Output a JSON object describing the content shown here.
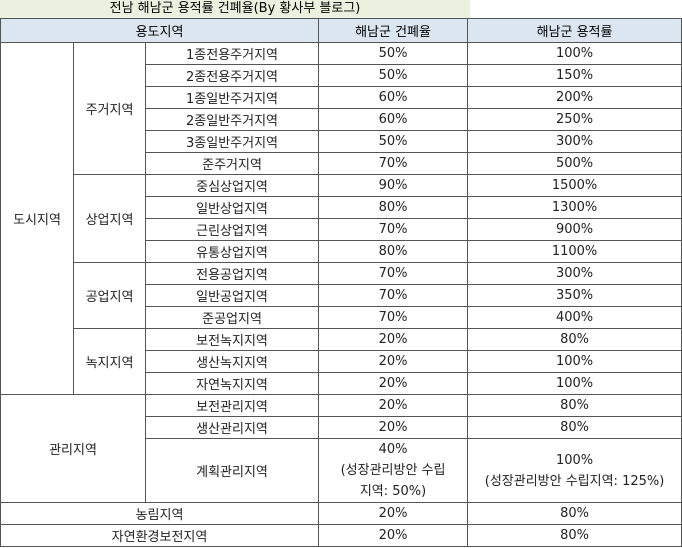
{
  "title": "전남 해남군 용적률 건폐율(By 황사부 블로그)",
  "header": [
    "용도지역",
    "해남군 건폐율",
    "해남군 용적률"
  ],
  "groups": [
    {
      "label": "도시지역",
      "subgroups": [
        {
          "label": "주거지역",
          "rows": [
            {
              "name": "1종전용주거지역",
              "coverage": "50%",
              "far": "100%"
            },
            {
              "name": "2종전용주거지역",
              "coverage": "50%",
              "far": "150%"
            },
            {
              "name": "1종일반주거지역",
              "coverage": "60%",
              "far": "200%"
            },
            {
              "name": "2종일반주거지역",
              "coverage": "60%",
              "far": "250%"
            },
            {
              "name": "3종일반주거지역",
              "coverage": "50%",
              "far": "300%"
            },
            {
              "name": "준주거지역",
              "coverage": "70%",
              "far": "500%"
            }
          ]
        },
        {
          "label": "상업지역",
          "rows": [
            {
              "name": "중심상업지역",
              "coverage": "90%",
              "far": "1500%"
            },
            {
              "name": "일반상업지역",
              "coverage": "80%",
              "far": "1300%"
            },
            {
              "name": "근린상업지역",
              "coverage": "70%",
              "far": "900%"
            },
            {
              "name": "유통상업지역",
              "coverage": "80%",
              "far": "1100%"
            }
          ]
        },
        {
          "label": "공업지역",
          "rows": [
            {
              "name": "전용공업지역",
              "coverage": "70%",
              "far": "300%"
            },
            {
              "name": "일반공업지역",
              "coverage": "70%",
              "far": "350%"
            },
            {
              "name": "준공업지역",
              "coverage": "70%",
              "far": "400%"
            }
          ]
        },
        {
          "label": "녹지지역",
          "rows": [
            {
              "name": "보전녹지지역",
              "coverage": "20%",
              "far": "80%"
            },
            {
              "name": "생산녹지지역",
              "coverage": "20%",
              "far": "100%"
            },
            {
              "name": "자연녹지지역",
              "coverage": "20%",
              "far": "100%"
            }
          ]
        }
      ]
    },
    {
      "label": "관리지역",
      "rows": [
        {
          "name": "보전관리지역",
          "coverage": "20%",
          "far": "80%"
        },
        {
          "name": "생산관리지역",
          "coverage": "20%",
          "far": "80%"
        },
        {
          "name": "계획관리지역",
          "coverage": [
            "40%",
            "(성장관리방안 수립",
            "지역: 50%)"
          ],
          "far": [
            "100%",
            "(성장관리방안 수립지역: 125%)"
          ]
        }
      ]
    },
    {
      "label": "농림지역",
      "coverage": "20%",
      "far": "80%"
    },
    {
      "label": "자연환경보전지역",
      "coverage": "20%",
      "far": "80%"
    }
  ]
}
